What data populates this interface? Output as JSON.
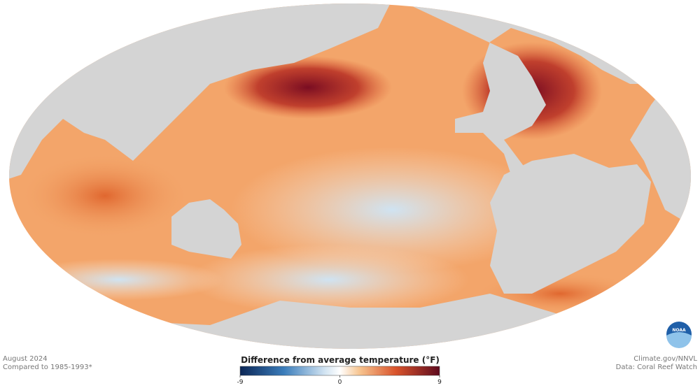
{
  "map": {
    "footer_left": {
      "date": "August 2024",
      "baseline": "Compared to 1985-1993*"
    },
    "legend": {
      "title": "Difference from average temperature (°F)",
      "range": [
        -9,
        9
      ],
      "ticks": [
        -9,
        0,
        9
      ]
    },
    "footer_right": {
      "source": "Climate.gov/NNVL",
      "data": "Data: Coral Reef Watch"
    },
    "logo": "NOAA"
  }
}
